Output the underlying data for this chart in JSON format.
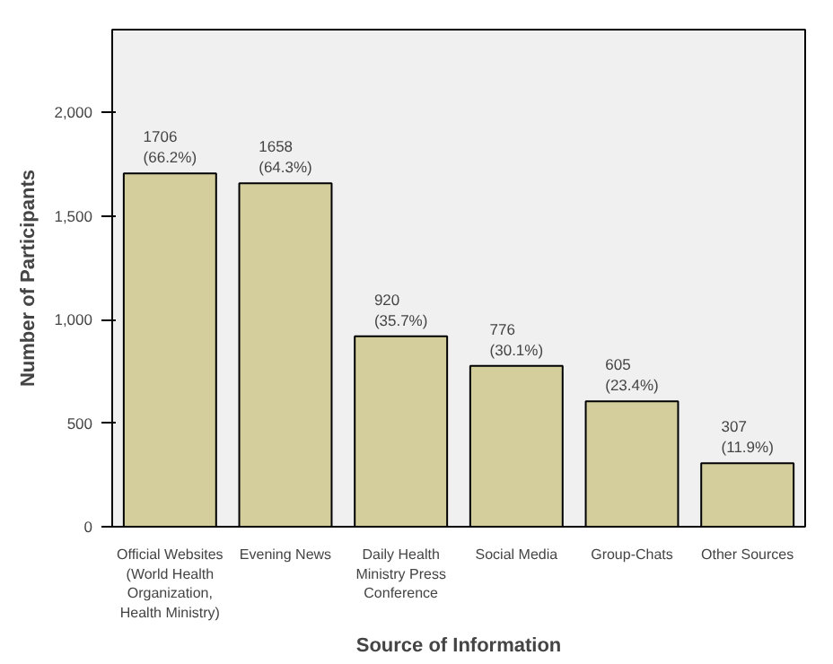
{
  "chart_data": {
    "type": "bar",
    "xlabel": "Source of Information",
    "ylabel": "Number of Participants",
    "categories": [
      "Official Websites\n(World Health\nOrganization,\nHealth Ministry)",
      "Evening News",
      "Daily Health\nMinistry Press\nConference",
      "Social Media",
      "Group-Chats",
      "Other Sources"
    ],
    "values": [
      1706,
      1658,
      920,
      776,
      605,
      307
    ],
    "value_labels": [
      "1706\n(66.2%)",
      "1658\n(64.3%)",
      "920\n(35.7%)",
      "776\n(30.1%)",
      "605\n(23.4%)",
      "307\n(11.9%)"
    ],
    "color": "#d3ce9c",
    "ylim": [
      0,
      2400
    ],
    "yticks": [
      0,
      500,
      {
        "value": 1000,
        "label": "1,000"
      },
      {
        "value": 1500,
        "label": "1,500"
      },
      {
        "value": 2000,
        "label": "2,000"
      }
    ],
    "grid": false
  }
}
